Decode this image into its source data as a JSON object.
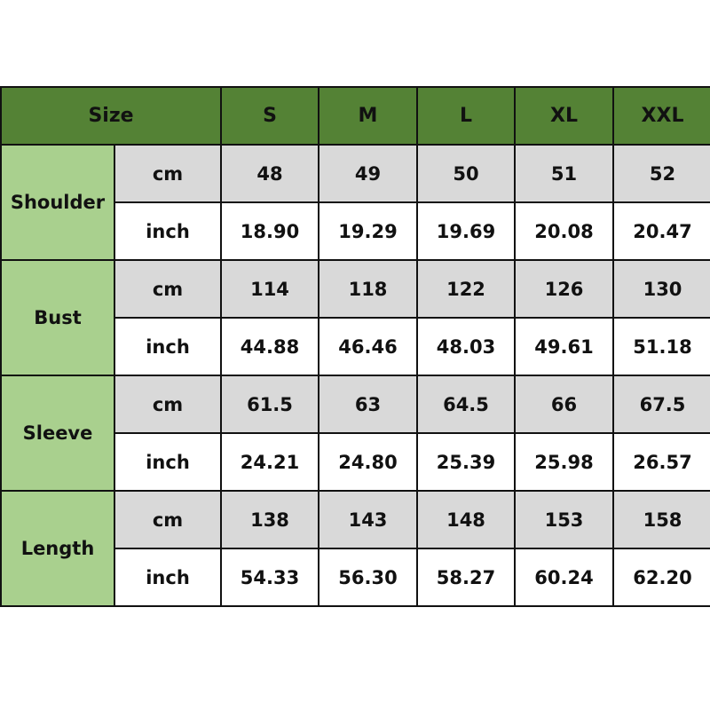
{
  "colors": {
    "header": "#548235",
    "label": "#a9d08e",
    "cm_row": "#d9d9d9",
    "inch_row": "#ffffff"
  },
  "header": {
    "size_label": "Size",
    "sizes": [
      "S",
      "M",
      "L",
      "XL",
      "XXL"
    ]
  },
  "measurements": [
    {
      "name": "Shoulder",
      "cm_label": "cm",
      "inch_label": "inch",
      "cm": [
        "48",
        "49",
        "50",
        "51",
        "52"
      ],
      "inch": [
        "18.90",
        "19.29",
        "19.69",
        "20.08",
        "20.47"
      ]
    },
    {
      "name": "Bust",
      "cm_label": "cm",
      "inch_label": "inch",
      "cm": [
        "114",
        "118",
        "122",
        "126",
        "130"
      ],
      "inch": [
        "44.88",
        "46.46",
        "48.03",
        "49.61",
        "51.18"
      ]
    },
    {
      "name": "Sleeve",
      "cm_label": "cm",
      "inch_label": "inch",
      "cm": [
        "61.5",
        "63",
        "64.5",
        "66",
        "67.5"
      ],
      "inch": [
        "24.21",
        "24.80",
        "25.39",
        "25.98",
        "26.57"
      ]
    },
    {
      "name": "Length",
      "cm_label": "cm",
      "inch_label": "inch",
      "cm": [
        "138",
        "143",
        "148",
        "153",
        "158"
      ],
      "inch": [
        "54.33",
        "56.30",
        "58.27",
        "60.24",
        "62.20"
      ]
    }
  ]
}
